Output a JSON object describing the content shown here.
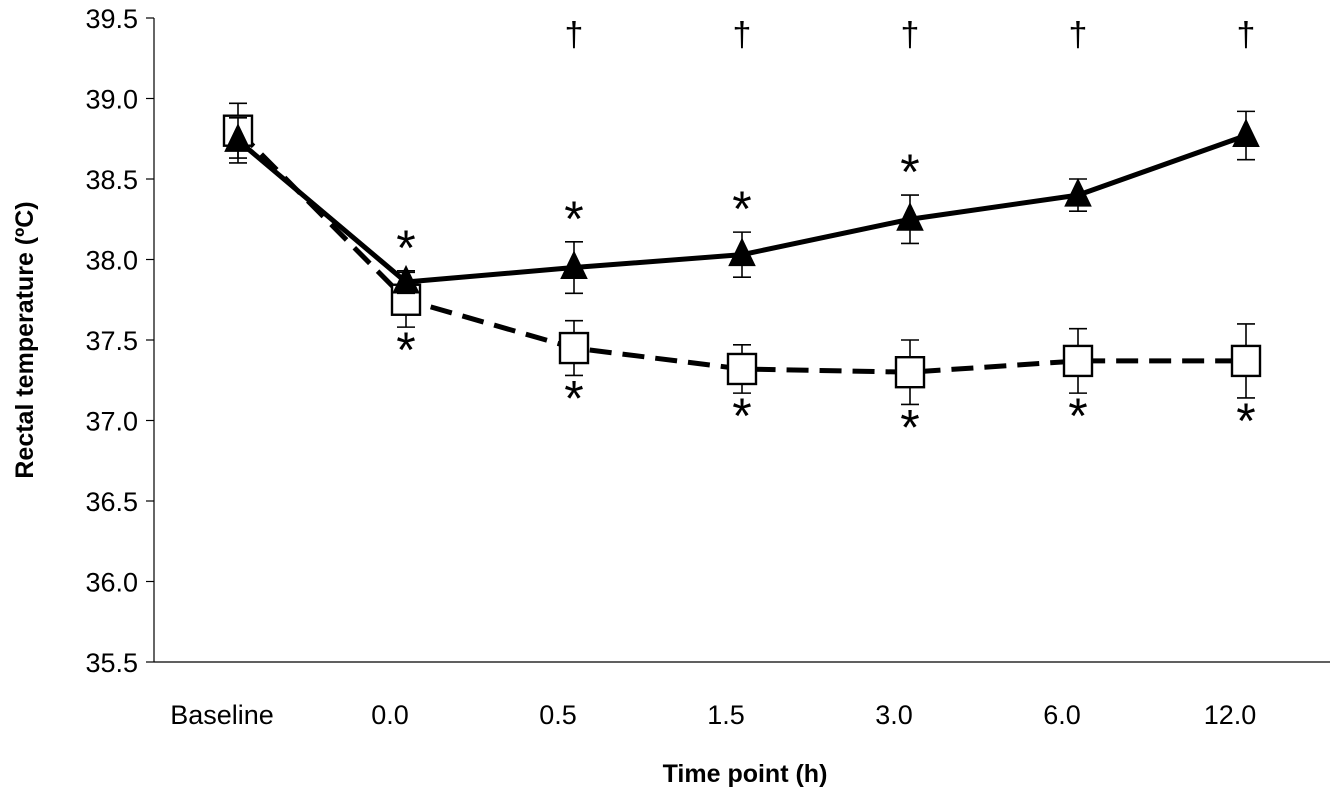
{
  "chart_data": {
    "type": "line",
    "xlabel": "Time point (h)",
    "ylabel": "Rectal temperature (ºC)",
    "categories": [
      "Baseline",
      "0.0",
      "0.5",
      "1.5",
      "3.0",
      "6.0",
      "12.0"
    ],
    "ylim": [
      35.5,
      39.5
    ],
    "yticks": [
      "35.5",
      "36.0",
      "36.5",
      "37.0",
      "37.5",
      "38.0",
      "38.5",
      "39.0",
      "39.5"
    ],
    "grid": false,
    "legend": "none",
    "series": [
      {
        "marker": "filled-triangle",
        "line": "solid",
        "color": "#000000",
        "values": [
          38.74,
          37.86,
          37.95,
          38.03,
          38.25,
          38.4,
          38.77
        ],
        "error": [
          0.14,
          0.07,
          0.16,
          0.14,
          0.15,
          0.1,
          0.15
        ],
        "significance_marks": [
          "",
          "*",
          "*",
          "*",
          "*",
          "",
          ""
        ]
      },
      {
        "marker": "open-square",
        "line": "dashed",
        "color": "#000000",
        "values": [
          38.8,
          37.75,
          37.45,
          37.32,
          37.3,
          37.37,
          37.37
        ],
        "error": [
          0.17,
          0.17,
          0.17,
          0.15,
          0.2,
          0.2,
          0.23
        ],
        "significance_marks": [
          "",
          "*",
          "*",
          "*",
          "*",
          "*",
          "*"
        ]
      }
    ],
    "between_group_marks": [
      "",
      "",
      "†",
      "†",
      "†",
      "†",
      "†"
    ]
  }
}
